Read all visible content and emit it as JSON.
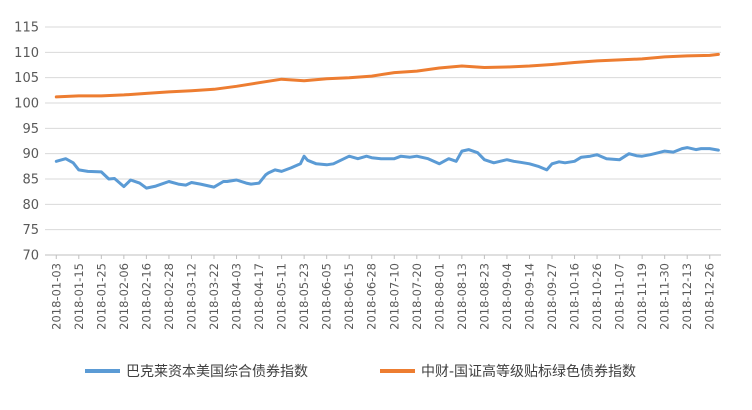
{
  "chart_data": {
    "type": "line",
    "title": "",
    "xlabel": "",
    "ylabel": "",
    "ylim": [
      70,
      115
    ],
    "yticks": [
      70,
      75,
      80,
      85,
      90,
      95,
      100,
      105,
      110,
      115
    ],
    "grid": true,
    "legend_position": "bottom",
    "x_tick_labels": [
      "2018-01-03",
      "2018-01-15",
      "2018-01-25",
      "2018-02-06",
      "2018-02-16",
      "2018-02-28",
      "2018-03-12",
      "2018-03-22",
      "2018-04-03",
      "2018-04-17",
      "2018-05-11",
      "2018-05-23",
      "2018-06-05",
      "2018-06-15",
      "2018-06-28",
      "2018-07-10",
      "2018-07-20",
      "2018-08-01",
      "2018-08-13",
      "2018-08-23",
      "2018-09-04",
      "2018-09-14",
      "2018-09-27",
      "2018-10-16",
      "2018-10-26",
      "2018-11-07",
      "2018-11-19",
      "2018-11-30",
      "2018-12-13",
      "2018-12-26"
    ],
    "series": [
      {
        "name": "巴克莱资本美国综合债券指数",
        "color": "#5B9BD5",
        "x": [
          "2018-01-03",
          "2018-01-08",
          "2018-01-12",
          "2018-01-15",
          "2018-01-19",
          "2018-01-25",
          "2018-01-29",
          "2018-02-01",
          "2018-02-06",
          "2018-02-09",
          "2018-02-13",
          "2018-02-16",
          "2018-02-21",
          "2018-02-28",
          "2018-03-05",
          "2018-03-09",
          "2018-03-12",
          "2018-03-16",
          "2018-03-22",
          "2018-03-27",
          "2018-03-29",
          "2018-04-03",
          "2018-04-09",
          "2018-04-12",
          "2018-04-17",
          "2018-04-24",
          "2018-04-27",
          "2018-05-04",
          "2018-05-11",
          "2018-05-16",
          "2018-05-21",
          "2018-05-23",
          "2018-05-25",
          "2018-05-30",
          "2018-06-05",
          "2018-06-08",
          "2018-06-15",
          "2018-06-20",
          "2018-06-25",
          "2018-06-28",
          "2018-07-03",
          "2018-07-10",
          "2018-07-13",
          "2018-07-17",
          "2018-07-20",
          "2018-07-26",
          "2018-08-01",
          "2018-08-06",
          "2018-08-10",
          "2018-08-13",
          "2018-08-16",
          "2018-08-20",
          "2018-08-23",
          "2018-08-28",
          "2018-09-04",
          "2018-09-07",
          "2018-09-10",
          "2018-09-14",
          "2018-09-19",
          "2018-09-24",
          "2018-09-27",
          "2018-10-03",
          "2018-10-08",
          "2018-10-16",
          "2018-10-19",
          "2018-10-23",
          "2018-10-26",
          "2018-10-31",
          "2018-11-07",
          "2018-11-12",
          "2018-11-16",
          "2018-11-19",
          "2018-11-23",
          "2018-11-27",
          "2018-11-30",
          "2018-12-05",
          "2018-12-10",
          "2018-12-13",
          "2018-12-18",
          "2018-12-21",
          "2018-12-26",
          "2018-12-31"
        ],
        "values": [
          88.5,
          89.0,
          88.2,
          86.8,
          86.5,
          86.4,
          85.0,
          85.1,
          83.5,
          84.8,
          84.2,
          83.2,
          83.6,
          84.5,
          84.0,
          83.8,
          84.3,
          84.0,
          83.4,
          84.5,
          84.5,
          84.8,
          84.2,
          84.0,
          84.2,
          85.8,
          86.2,
          86.8,
          86.5,
          87.2,
          88.0,
          89.5,
          88.7,
          88.0,
          87.8,
          88.0,
          89.5,
          89.0,
          89.5,
          89.2,
          89.0,
          89.0,
          89.5,
          89.3,
          89.5,
          89.0,
          88.0,
          89.0,
          88.5,
          90.5,
          90.8,
          90.2,
          88.8,
          88.2,
          88.8,
          88.5,
          88.3,
          88.0,
          87.5,
          86.8,
          88.0,
          88.4,
          88.2,
          88.5,
          89.3,
          89.5,
          89.8,
          89.0,
          88.8,
          90.0,
          89.6,
          89.5,
          89.8,
          90.2,
          90.5,
          90.3,
          91.0,
          91.2,
          90.8,
          91.0,
          91.0,
          90.7
        ]
      },
      {
        "name": "中财-国证高等级贴标绿色债券指数",
        "color": "#ED7D31",
        "x": [
          "2018-01-03",
          "2018-01-15",
          "2018-01-25",
          "2018-02-06",
          "2018-02-16",
          "2018-02-28",
          "2018-03-12",
          "2018-03-22",
          "2018-04-03",
          "2018-04-17",
          "2018-05-11",
          "2018-05-23",
          "2018-06-05",
          "2018-06-15",
          "2018-06-28",
          "2018-07-10",
          "2018-07-20",
          "2018-08-01",
          "2018-08-13",
          "2018-08-23",
          "2018-09-04",
          "2018-09-14",
          "2018-09-27",
          "2018-10-16",
          "2018-10-26",
          "2018-11-07",
          "2018-11-19",
          "2018-11-30",
          "2018-12-13",
          "2018-12-26",
          "2018-12-31"
        ],
        "values": [
          101.2,
          101.4,
          101.4,
          101.6,
          101.9,
          102.2,
          102.4,
          102.7,
          103.3,
          104.0,
          104.7,
          104.4,
          104.8,
          105.0,
          105.3,
          106.0,
          106.3,
          106.9,
          107.3,
          107.0,
          107.1,
          107.3,
          107.6,
          108.0,
          108.3,
          108.5,
          108.7,
          109.1,
          109.3,
          109.4,
          109.6
        ]
      }
    ]
  }
}
